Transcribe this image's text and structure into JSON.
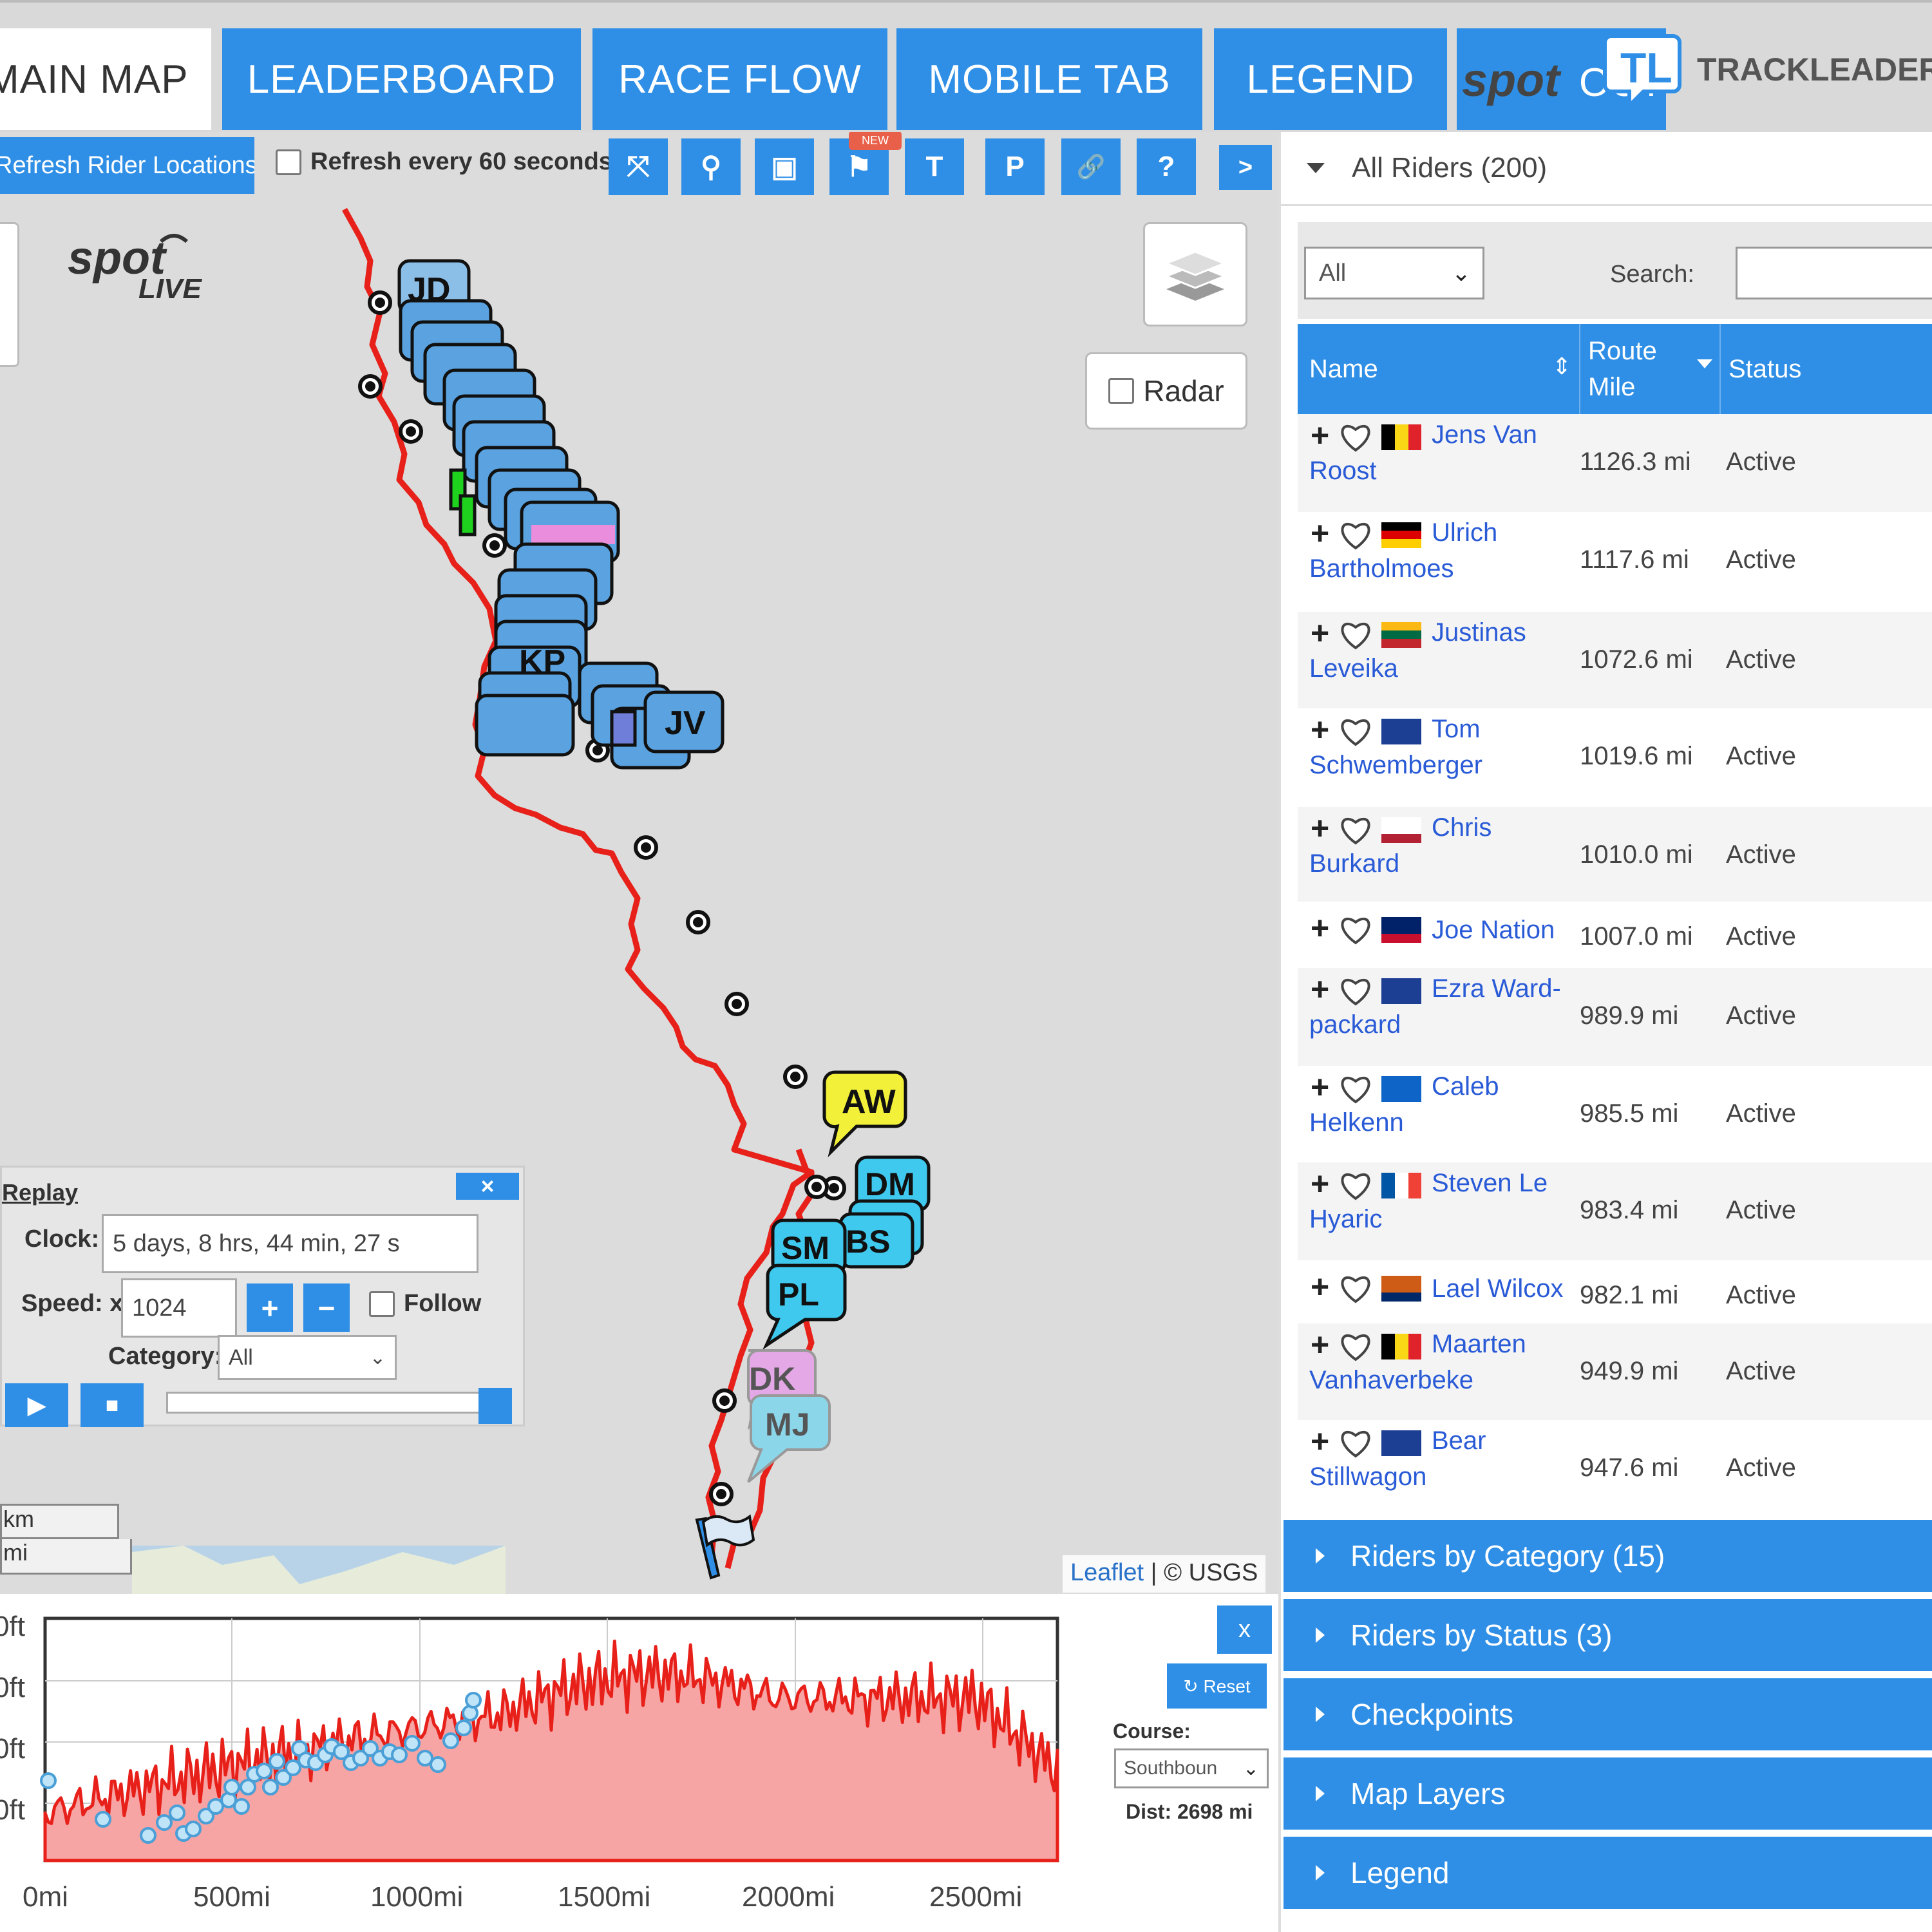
{
  "tabs": [
    {
      "label": "MAIN MAP"
    },
    {
      "label": "LEADERBOARD"
    },
    {
      "label": "RACE FLOW"
    },
    {
      "label": "MOBILE TAB"
    },
    {
      "label": "LEGEND"
    }
  ],
  "branding": {
    "trackleaders": "TRACKLEADERS.",
    "tl_badge": "TL"
  },
  "toolbar": {
    "refresh_label": "Refresh Rider Locations",
    "auto_refresh_label": "Refresh every 60 seconds",
    "new_badge": "NEW",
    "tools": [
      "⤧",
      "⚲",
      "▣",
      "⚑",
      "T",
      "P",
      "🔗",
      "?",
      ">"
    ]
  },
  "map": {
    "radar_label": "Radar",
    "riders": [
      "JD",
      "KP",
      "JV",
      "AW",
      "DM",
      "BS",
      "SM",
      "PL",
      "DK",
      "MJ"
    ],
    "replay": {
      "title": "Replay",
      "close": "×",
      "clock_label": "Clock:",
      "clock_value": "5 days, 8 hrs, 44 min, 27 s",
      "speed_label": "Speed: x",
      "speed_value": "1024",
      "follow_label": "Follow",
      "category_label": "Category:",
      "category_value": "All",
      "play": "▶",
      "stop": "■",
      "plus": "+",
      "minus": "−"
    },
    "scale": {
      "km": "km",
      "mi": "mi"
    },
    "attribution": {
      "leaflet": "Leaflet",
      "rest": " | © USGS"
    }
  },
  "elevation": {
    "close": "x",
    "reset": "↻ Reset",
    "course_label": "Course:",
    "course_value": "Southboun",
    "dist": "Dist: 2698 mi",
    "y_ticks": [
      "0ft",
      "0ft",
      "0ft",
      "0ft"
    ],
    "chart_data": {
      "type": "area",
      "x_ticks": [
        "0mi",
        "500mi",
        "1000mi",
        "1500mi",
        "2000mi",
        "2500mi"
      ],
      "xlim": [
        0,
        2698
      ]
    }
  },
  "panel": {
    "all_riders": "All Riders (200)",
    "filter_value": "All",
    "search_label": "Search:",
    "columns": {
      "name": "Name",
      "route_mile": "Route Mile",
      "status": "Status"
    },
    "riders": [
      {
        "name": "Jens Van Roost",
        "mile": "1126.3 mi",
        "status": "Active",
        "flag": [
          "#000",
          "#f9d616",
          "#e0232b"
        ],
        "flag_dir": "v"
      },
      {
        "name": "Ulrich Bartholmoes",
        "mile": "1117.6 mi",
        "status": "Active",
        "flag": [
          "#000",
          "#dd0000",
          "#ffce00"
        ],
        "flag_dir": "h"
      },
      {
        "name": "Justinas Leveika",
        "mile": "1072.6 mi",
        "status": "Active",
        "flag": [
          "#fdb913",
          "#006a44",
          "#c1272d"
        ],
        "flag_dir": "h"
      },
      {
        "name": "Tom Schwemberger",
        "mile": "1019.6 mi",
        "status": "Active",
        "flag": [
          "#1c3f94",
          "#1c3f94",
          "#1c3f94"
        ],
        "flag_dir": "h"
      },
      {
        "name": "Chris Burkard",
        "mile": "1010.0 mi",
        "status": "Active",
        "flag": [
          "#ffffff",
          "#ffffff",
          "#b22234"
        ],
        "flag_dir": "h"
      },
      {
        "name": "Joe Nation",
        "mile": "1007.0 mi",
        "status": "Active",
        "flag": [
          "#012169",
          "#012169",
          "#c8102e"
        ],
        "flag_dir": "h"
      },
      {
        "name": "Ezra Ward-packard",
        "mile": "989.9 mi",
        "status": "Active",
        "flag": [
          "#1c3f94",
          "#1c3f94",
          "#1c3f94"
        ],
        "flag_dir": "h"
      },
      {
        "name": "Caleb Helkenn",
        "mile": "985.5 mi",
        "status": "Active",
        "flag": [
          "#0f64c8",
          "#0f64c8",
          "#0f64c8"
        ],
        "flag_dir": "h"
      },
      {
        "name": "Steven Le Hyaric",
        "mile": "983.4 mi",
        "status": "Active",
        "flag": [
          "#0055a4",
          "#ffffff",
          "#ef4135"
        ],
        "flag_dir": "v"
      },
      {
        "name": "Lael Wilcox",
        "mile": "982.1 mi",
        "status": "Active",
        "flag": [
          "#ce5c17",
          "#ce5c17",
          "#002868"
        ],
        "flag_dir": "h"
      },
      {
        "name": "Maarten Vanhaverbeke",
        "mile": "949.9 mi",
        "status": "Active",
        "flag": [
          "#000",
          "#f9d616",
          "#e0232b"
        ],
        "flag_dir": "v"
      },
      {
        "name": "Bear Stillwagon",
        "mile": "947.6 mi",
        "status": "Active",
        "flag": [
          "#1c3f94",
          "#1c3f94",
          "#1c3f94"
        ],
        "flag_dir": "h"
      }
    ],
    "accordions": [
      "Riders by Category (15)",
      "Riders by Status (3)",
      "Checkpoints",
      "Map Layers",
      "Legend"
    ]
  },
  "colors": {
    "accent": "#2f8fe6",
    "route": "#e8201a",
    "link": "#2a5bd7"
  }
}
